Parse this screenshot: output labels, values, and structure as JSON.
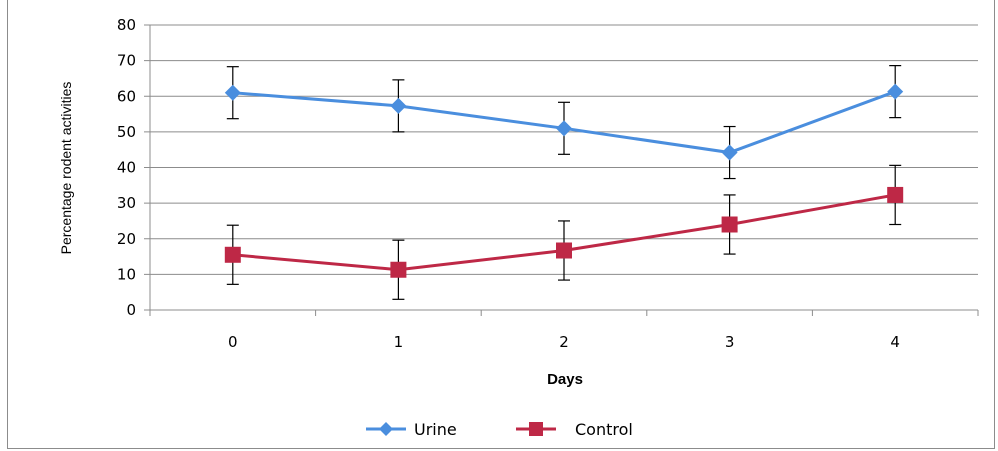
{
  "chart_data": {
    "type": "line",
    "x": [
      0,
      1,
      2,
      3,
      4
    ],
    "xlabel": "Days",
    "ylabel": "Percentage rodent activities",
    "ylim": [
      0,
      80
    ],
    "yticks": [
      0,
      10,
      20,
      30,
      40,
      50,
      60,
      70,
      80
    ],
    "grid": true,
    "legend_position": "bottom",
    "series": [
      {
        "name": "Urine",
        "values": [
          61,
          57.3,
          51,
          44.2,
          61.3
        ],
        "error": [
          7.3,
          7.3,
          7.3,
          7.3,
          7.3
        ],
        "color": "#4a8ede",
        "marker": "diamond"
      },
      {
        "name": "Control",
        "values": [
          15.5,
          11.3,
          16.7,
          24,
          32.3
        ],
        "error": [
          8.3,
          8.3,
          8.3,
          8.3,
          8.3
        ],
        "color": "#be2846",
        "marker": "square"
      }
    ]
  }
}
